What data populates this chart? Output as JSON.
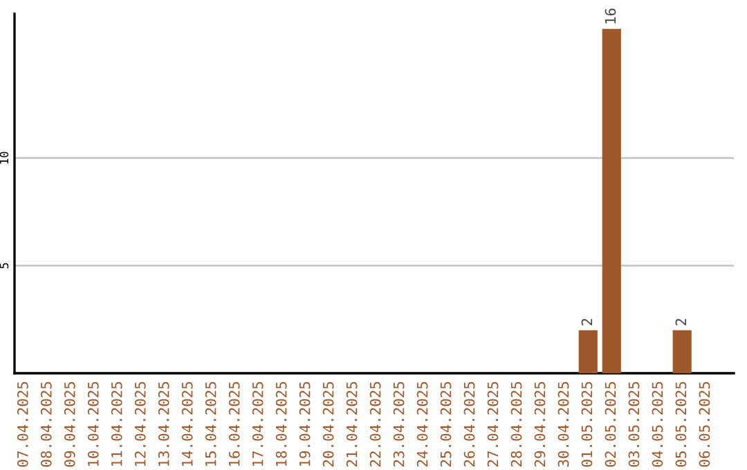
{
  "chart_data": {
    "type": "bar",
    "categories": [
      "07.04.2025",
      "08.04.2025",
      "09.04.2025",
      "10.04.2025",
      "11.04.2025",
      "12.04.2025",
      "13.04.2025",
      "14.04.2025",
      "15.04.2025",
      "16.04.2025",
      "17.04.2025",
      "18.04.2025",
      "19.04.2025",
      "20.04.2025",
      "21.04.2025",
      "22.04.2025",
      "23.04.2025",
      "24.04.2025",
      "25.04.2025",
      "26.04.2025",
      "27.04.2025",
      "28.04.2025",
      "29.04.2025",
      "30.04.2025",
      "01.05.2025",
      "02.05.2025",
      "03.05.2025",
      "04.05.2025",
      "05.05.2025",
      "06.05.2025"
    ],
    "values": [
      0,
      0,
      0,
      0,
      0,
      0,
      0,
      0,
      0,
      0,
      0,
      0,
      0,
      0,
      0,
      0,
      0,
      0,
      0,
      0,
      0,
      0,
      0,
      0,
      2,
      16,
      0,
      0,
      2,
      0
    ],
    "value_labels": [
      null,
      null,
      null,
      null,
      null,
      null,
      null,
      null,
      null,
      null,
      null,
      null,
      null,
      null,
      null,
      null,
      null,
      null,
      null,
      null,
      null,
      null,
      null,
      null,
      "2",
      "16",
      null,
      null,
      "2",
      null
    ],
    "color": "#a0572a",
    "ylim": [
      0,
      16.7
    ],
    "yticks": [
      5,
      10
    ],
    "grid": "y"
  }
}
